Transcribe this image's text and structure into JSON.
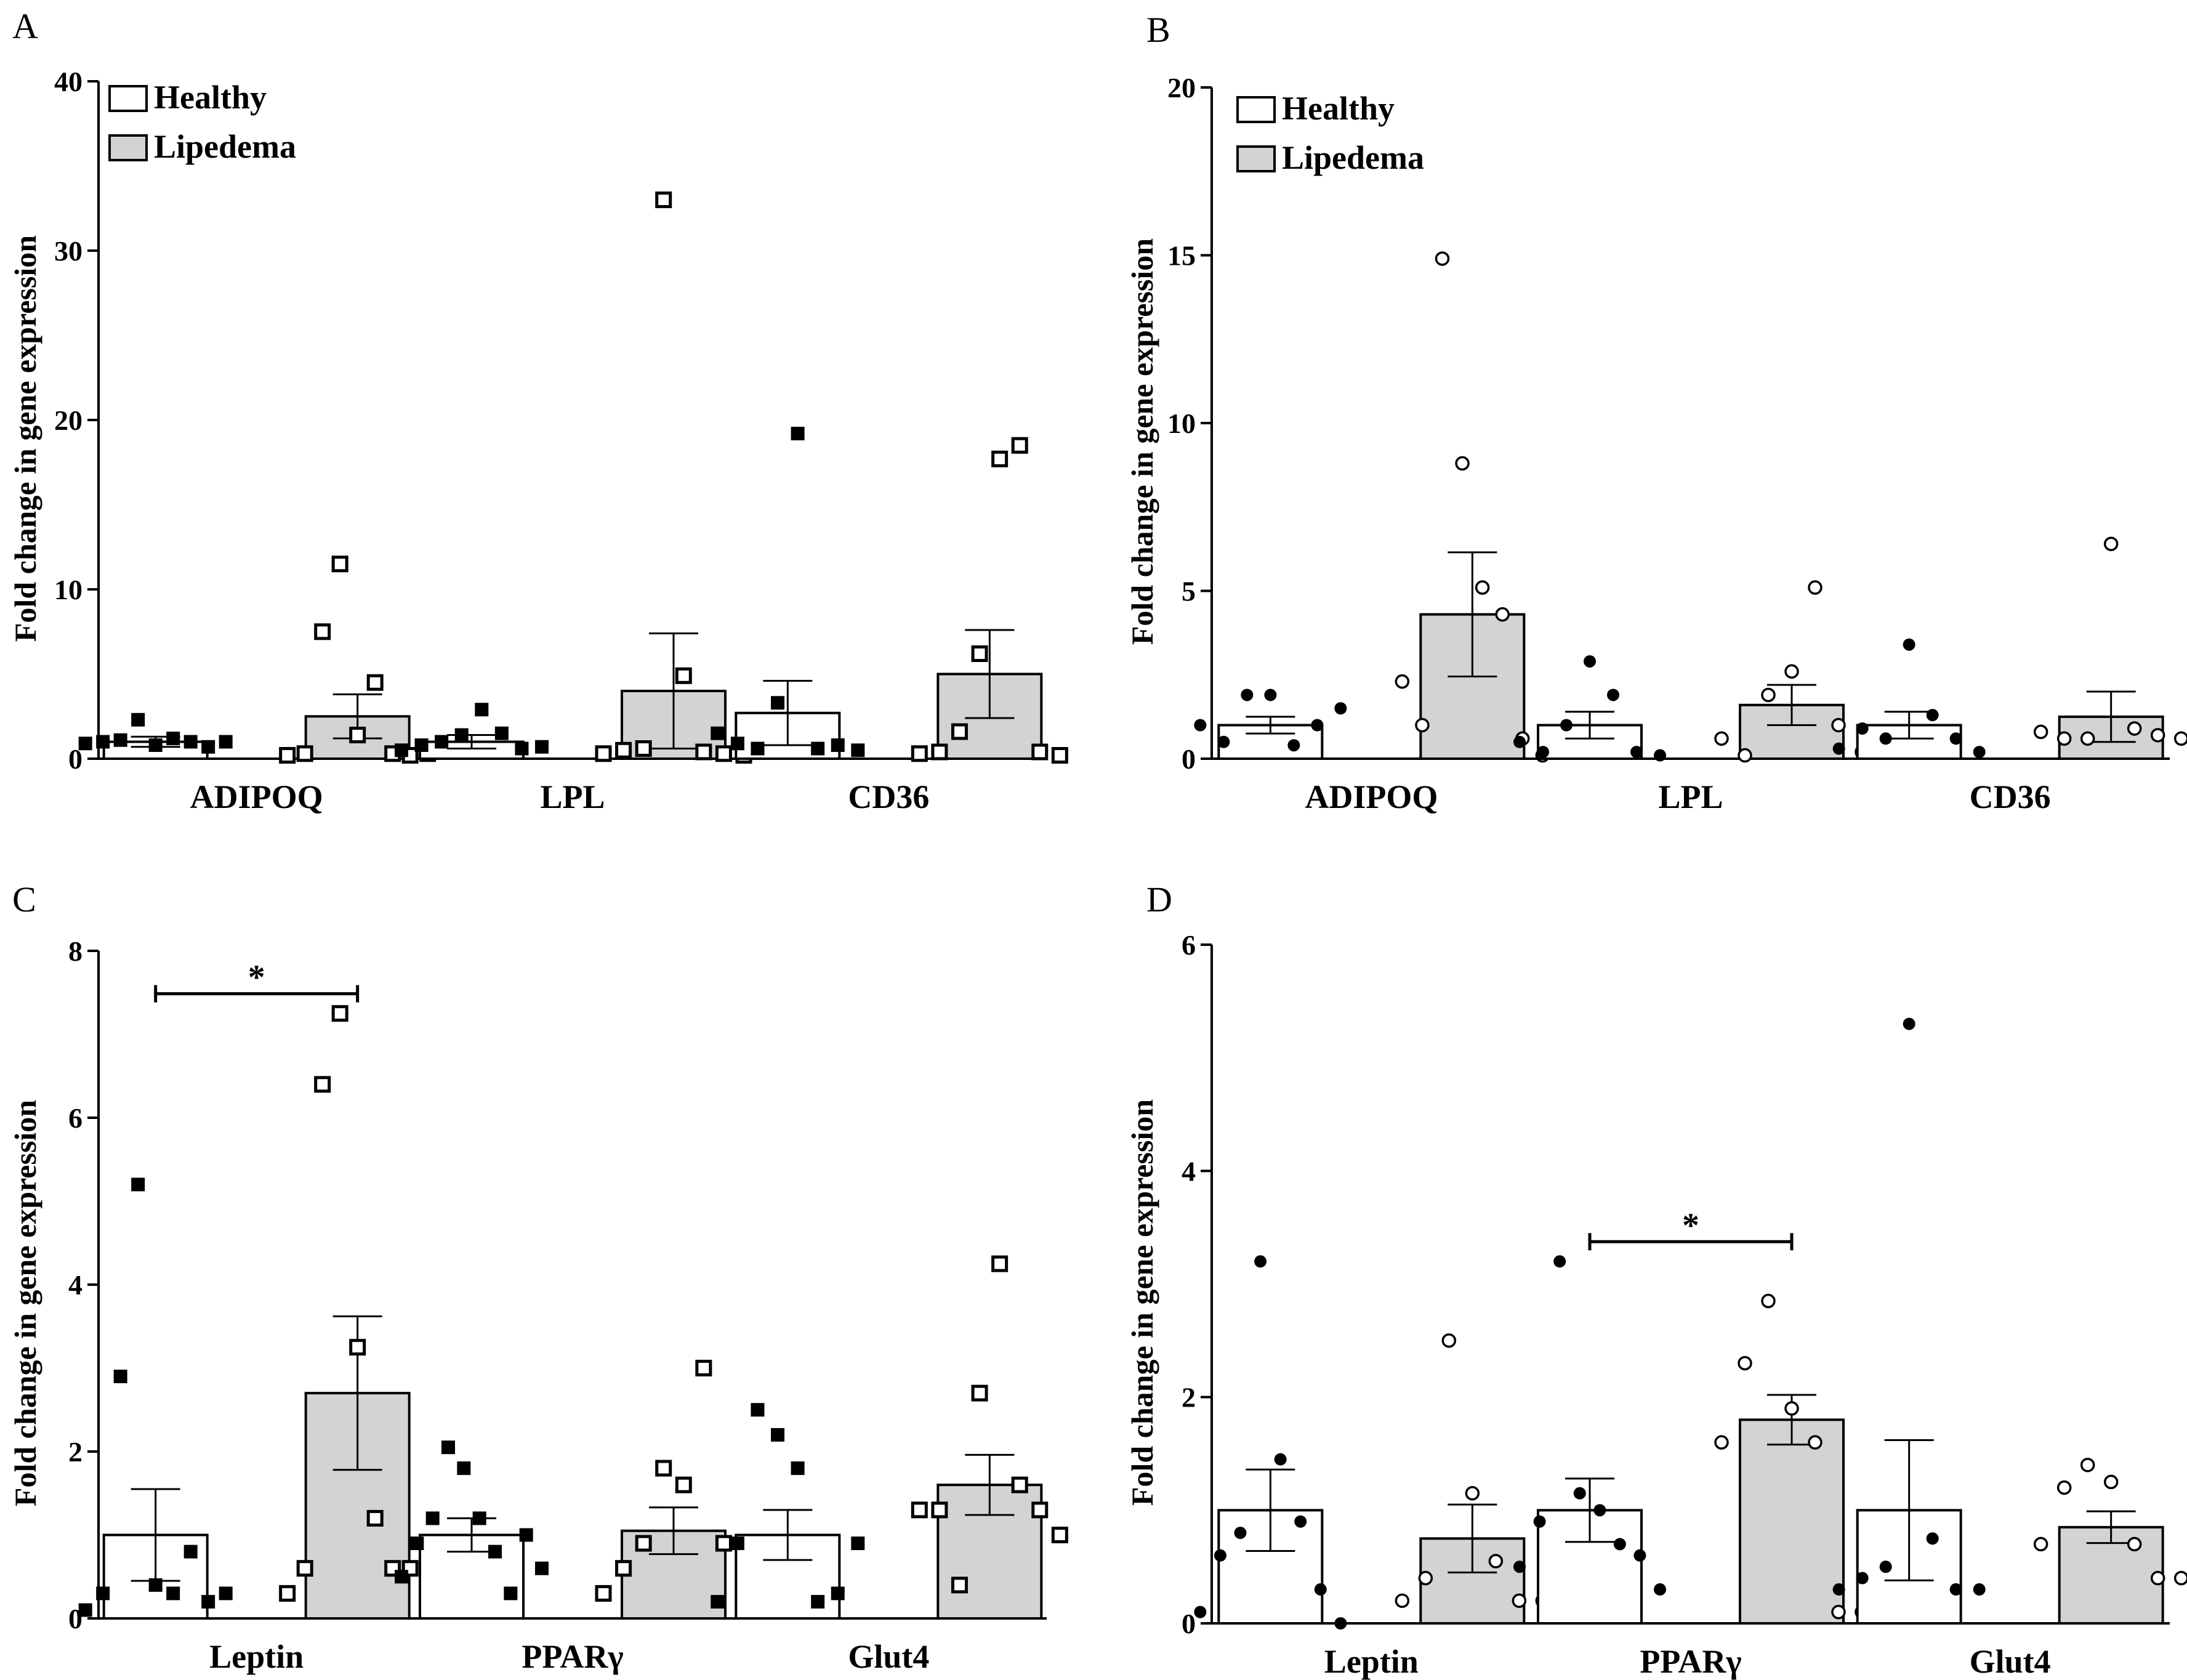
{
  "chart_data": [
    {
      "type": "bar",
      "panel": "A",
      "ylabel": "Fold change in gene expression",
      "ylim": [
        0,
        40
      ],
      "yticks": [
        0,
        10,
        20,
        30,
        40
      ],
      "categories": [
        "ADIPOQ",
        "LPL",
        "CD36"
      ],
      "marker": "square",
      "legend": [
        "Healthy",
        "Lipedema"
      ],
      "series": [
        {
          "name": "Healthy",
          "fill": "#ffffff",
          "means": [
            1.0,
            1.0,
            2.7
          ],
          "sems": [
            0.3,
            0.4,
            1.9
          ],
          "points": [
            [
              0.9,
              1.0,
              1.1,
              2.3,
              0.8,
              1.2,
              1.0,
              0.7,
              1.0
            ],
            [
              0.5,
              0.8,
              1.0,
              1.4,
              2.9,
              1.5,
              0.6,
              0.7
            ],
            [
              1.5,
              0.9,
              0.6,
              3.3,
              19.2,
              0.6,
              0.8,
              0.5
            ]
          ]
        },
        {
          "name": "Lipedema",
          "fill": "#d3d3d3",
          "means": [
            2.5,
            4.0,
            5.0
          ],
          "sems": [
            1.3,
            3.4,
            2.6
          ],
          "points": [
            [
              0.2,
              0.3,
              7.5,
              11.5,
              1.4,
              4.5,
              0.3,
              0.2,
              0.3
            ],
            [
              0.3,
              0.5,
              0.6,
              33.0,
              4.9,
              0.4,
              0.3,
              0.2
            ],
            [
              0.3,
              0.4,
              1.6,
              6.2,
              17.7,
              18.5,
              0.4,
              0.2
            ]
          ]
        }
      ],
      "significance": []
    },
    {
      "type": "bar",
      "panel": "B",
      "ylabel": "Fold change in gene expression",
      "ylim": [
        0,
        20
      ],
      "yticks": [
        0,
        5,
        10,
        15,
        20
      ],
      "categories": [
        "ADIPOQ",
        "LPL",
        "CD36"
      ],
      "marker": "circle",
      "legend": [
        "Healthy",
        "Lipedema"
      ],
      "series": [
        {
          "name": "Healthy",
          "fill": "#ffffff",
          "means": [
            1.0,
            1.0,
            1.0
          ],
          "sems": [
            0.25,
            0.4,
            0.4
          ],
          "points": [
            [
              1.0,
              0.5,
              1.9,
              1.9,
              0.4,
              1.0,
              1.5
            ],
            [
              0.5,
              0.2,
              1.0,
              2.9,
              1.9,
              0.2,
              0.1
            ],
            [
              0.3,
              0.9,
              0.6,
              3.4,
              1.3,
              0.6,
              0.2
            ]
          ]
        },
        {
          "name": "Lipedema",
          "fill": "#d3d3d3",
          "means": [
            4.3,
            1.6,
            1.25
          ],
          "sems": [
            1.85,
            0.6,
            0.75
          ],
          "points": [
            [
              2.3,
              1.0,
              14.9,
              8.8,
              5.1,
              4.3,
              0.6,
              0.1
            ],
            [
              0.6,
              0.1,
              1.9,
              2.6,
              5.1,
              1.0,
              0.2
            ],
            [
              0.8,
              0.6,
              0.6,
              6.4,
              0.9,
              0.7,
              0.6
            ]
          ]
        }
      ],
      "significance": []
    },
    {
      "type": "bar",
      "panel": "C",
      "ylabel": "Fold change in gene expression",
      "ylim": [
        0,
        8
      ],
      "yticks": [
        0,
        2,
        4,
        6,
        8
      ],
      "categories": [
        "Leptin",
        "PPARγ",
        "Glut4"
      ],
      "marker": "square",
      "legend": [],
      "series": [
        {
          "name": "Healthy",
          "fill": "#ffffff",
          "means": [
            1.0,
            1.0,
            1.0
          ],
          "sems": [
            0.55,
            0.2,
            0.3
          ],
          "points": [
            [
              0.1,
              0.3,
              2.9,
              5.2,
              0.4,
              0.3,
              0.8,
              0.2,
              0.3
            ],
            [
              0.5,
              0.9,
              1.2,
              2.05,
              1.8,
              1.2,
              0.8,
              0.3,
              1.0,
              0.6
            ],
            [
              0.2,
              0.9,
              2.5,
              2.2,
              1.8,
              0.2,
              0.3,
              0.9
            ]
          ]
        },
        {
          "name": "Lipedema",
          "fill": "#d3d3d3",
          "means": [
            2.7,
            1.05,
            1.6
          ],
          "sems": [
            0.92,
            0.28,
            0.36
          ],
          "points": [
            [
              0.3,
              0.6,
              6.4,
              7.25,
              3.25,
              1.2,
              0.6,
              0.6,
              0.3
            ],
            [
              0.3,
              0.6,
              0.9,
              1.8,
              1.6,
              3.0,
              0.9,
              0.3
            ],
            [
              1.3,
              1.3,
              0.4,
              2.7,
              4.25,
              1.6,
              1.3,
              1.0
            ]
          ]
        }
      ],
      "significance": [
        {
          "category": "Leptin",
          "label": "*"
        }
      ]
    },
    {
      "type": "bar",
      "panel": "D",
      "ylabel": "Fold change in gene expression",
      "ylim": [
        0,
        6
      ],
      "yticks": [
        0,
        2,
        4,
        6
      ],
      "categories": [
        "Leptin",
        "PPARγ",
        "Glut4"
      ],
      "marker": "circle",
      "legend": [],
      "series": [
        {
          "name": "Healthy",
          "fill": "#ffffff",
          "means": [
            1.0,
            1.0,
            1.0
          ],
          "sems": [
            0.36,
            0.28,
            0.62
          ],
          "points": [
            [
              0.1,
              0.6,
              0.8,
              3.2,
              1.45,
              0.9,
              0.3,
              0.0
            ],
            [
              0.5,
              0.9,
              3.2,
              1.15,
              1.0,
              0.7,
              0.6,
              0.3
            ],
            [
              0.3,
              0.4,
              0.5,
              5.3,
              0.75,
              0.3,
              0.3
            ]
          ]
        },
        {
          "name": "Lipedema",
          "fill": "#d3d3d3",
          "means": [
            0.75,
            1.8,
            0.85
          ],
          "sems": [
            0.3,
            0.22,
            0.14
          ],
          "points": [
            [
              0.2,
              0.4,
              2.5,
              1.15,
              0.55,
              0.2,
              0.2
            ],
            [
              1.6,
              2.3,
              2.85,
              1.9,
              1.6,
              0.1,
              0.1
            ],
            [
              0.7,
              1.2,
              1.4,
              1.25,
              0.7,
              0.4,
              0.4
            ]
          ]
        }
      ],
      "significance": [
        {
          "category": "PPARγ",
          "label": "*"
        }
      ]
    }
  ]
}
